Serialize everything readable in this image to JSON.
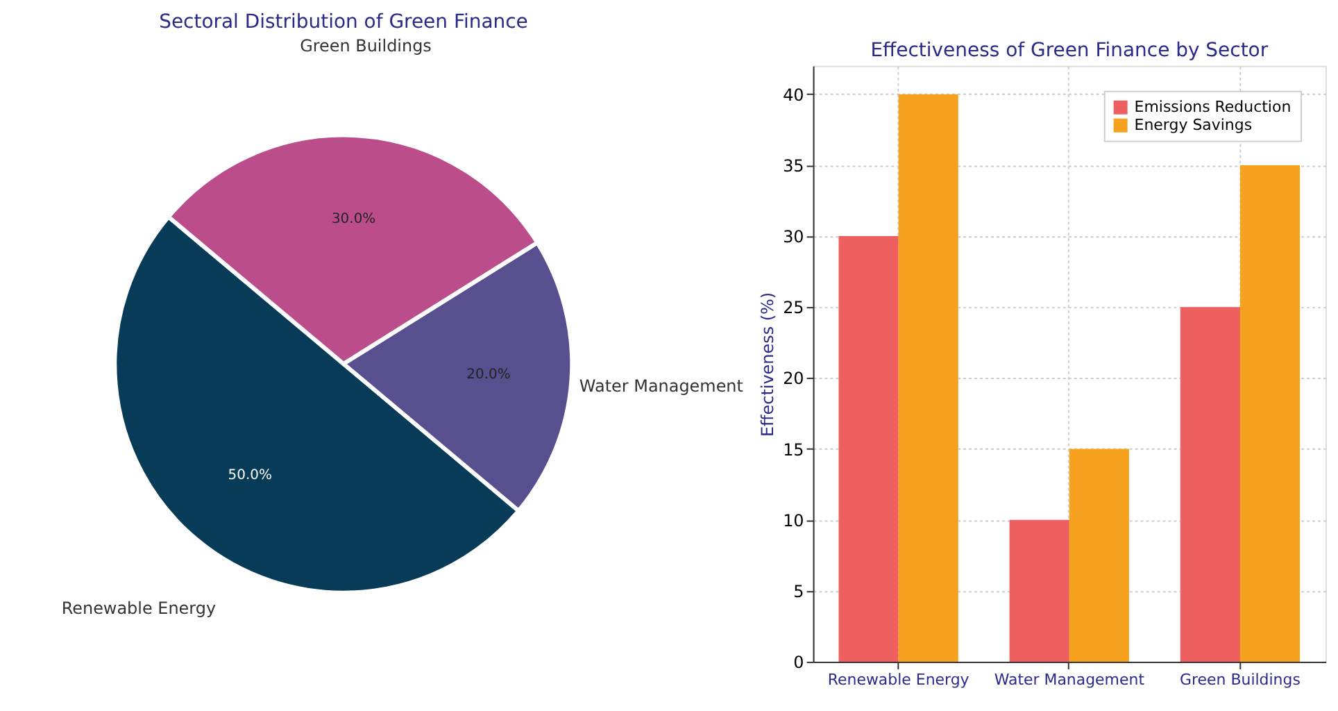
{
  "chart_data": [
    {
      "type": "pie",
      "title": "Sectoral Distribution of Green Finance",
      "categories": [
        "Renewable Energy",
        "Water Management",
        "Green Buildings"
      ],
      "values": [
        50,
        20,
        30
      ],
      "colors": [
        "#073b58",
        "#574f8e",
        "#bb4d8b"
      ],
      "value_labels": [
        "50.0%",
        "20.0%",
        "30.0%"
      ]
    },
    {
      "type": "bar",
      "title": "Effectiveness of Green Finance by Sector",
      "ylabel": "Effectiveness (%)",
      "categories": [
        "Renewable Energy",
        "Water Management",
        "Green Buildings"
      ],
      "series": [
        {
          "name": "Emissions Reduction",
          "color": "#ee6060",
          "values": [
            30,
            10,
            25
          ]
        },
        {
          "name": "Energy Savings",
          "color": "#f6a21e",
          "values": [
            40,
            15,
            35
          ]
        }
      ],
      "ylim": [
        0,
        42
      ],
      "yticks": [
        0,
        5,
        10,
        15,
        20,
        25,
        30,
        35,
        40
      ],
      "grid": true,
      "legend": "top right"
    }
  ]
}
